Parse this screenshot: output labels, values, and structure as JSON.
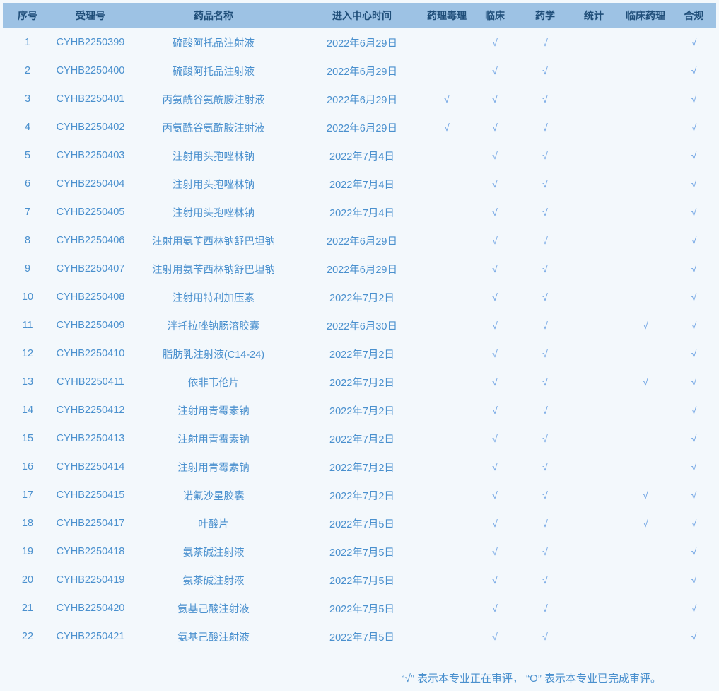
{
  "page": {
    "background": "#f3f8fc"
  },
  "colors": {
    "header_background": "#9dc2e4",
    "header_text": "#1f4e79",
    "row_text": "#4a90ce",
    "check_mark": "#6ea3e4"
  },
  "table": {
    "check_mark": "√",
    "columns": [
      {
        "key": "seq",
        "label": "序号"
      },
      {
        "key": "acceptance_no",
        "label": "受理号"
      },
      {
        "key": "drug_name",
        "label": "药品名称"
      },
      {
        "key": "entry_date",
        "label": "进入中心时间"
      },
      {
        "key": "pharmtox",
        "label": "药理毒理"
      },
      {
        "key": "clinical",
        "label": "临床"
      },
      {
        "key": "pharmacy",
        "label": "药学"
      },
      {
        "key": "statistics",
        "label": "统计"
      },
      {
        "key": "clinpharm",
        "label": "临床药理"
      },
      {
        "key": "compliance",
        "label": "合规"
      }
    ],
    "rows": [
      {
        "seq": "1",
        "acceptance_no": "CYHB2250399",
        "drug_name": "硫酸阿托品注射液",
        "entry_date": "2022年6月29日",
        "checks": [
          "",
          "√",
          "√",
          "",
          "",
          "√"
        ]
      },
      {
        "seq": "2",
        "acceptance_no": "CYHB2250400",
        "drug_name": "硫酸阿托品注射液",
        "entry_date": "2022年6月29日",
        "checks": [
          "",
          "√",
          "√",
          "",
          "",
          "√"
        ]
      },
      {
        "seq": "3",
        "acceptance_no": "CYHB2250401",
        "drug_name": "丙氨酰谷氨酰胺注射液",
        "entry_date": "2022年6月29日",
        "checks": [
          "√",
          "√",
          "√",
          "",
          "",
          "√"
        ]
      },
      {
        "seq": "4",
        "acceptance_no": "CYHB2250402",
        "drug_name": "丙氨酰谷氨酰胺注射液",
        "entry_date": "2022年6月29日",
        "checks": [
          "√",
          "√",
          "√",
          "",
          "",
          "√"
        ]
      },
      {
        "seq": "5",
        "acceptance_no": "CYHB2250403",
        "drug_name": "注射用头孢唑林钠",
        "entry_date": "2022年7月4日",
        "checks": [
          "",
          "√",
          "√",
          "",
          "",
          "√"
        ]
      },
      {
        "seq": "6",
        "acceptance_no": "CYHB2250404",
        "drug_name": "注射用头孢唑林钠",
        "entry_date": "2022年7月4日",
        "checks": [
          "",
          "√",
          "√",
          "",
          "",
          "√"
        ]
      },
      {
        "seq": "7",
        "acceptance_no": "CYHB2250405",
        "drug_name": "注射用头孢唑林钠",
        "entry_date": "2022年7月4日",
        "checks": [
          "",
          "√",
          "√",
          "",
          "",
          "√"
        ]
      },
      {
        "seq": "8",
        "acceptance_no": "CYHB2250406",
        "drug_name": "注射用氨苄西林钠舒巴坦钠",
        "entry_date": "2022年6月29日",
        "checks": [
          "",
          "√",
          "√",
          "",
          "",
          "√"
        ]
      },
      {
        "seq": "9",
        "acceptance_no": "CYHB2250407",
        "drug_name": "注射用氨苄西林钠舒巴坦钠",
        "entry_date": "2022年6月29日",
        "checks": [
          "",
          "√",
          "√",
          "",
          "",
          "√"
        ]
      },
      {
        "seq": "10",
        "acceptance_no": "CYHB2250408",
        "drug_name": "注射用特利加压素",
        "entry_date": "2022年7月2日",
        "checks": [
          "",
          "√",
          "√",
          "",
          "",
          "√"
        ]
      },
      {
        "seq": "11",
        "acceptance_no": "CYHB2250409",
        "drug_name": "泮托拉唑钠肠溶胶囊",
        "entry_date": "2022年6月30日",
        "checks": [
          "",
          "√",
          "√",
          "",
          "√",
          "√"
        ]
      },
      {
        "seq": "12",
        "acceptance_no": "CYHB2250410",
        "drug_name": "脂肪乳注射液(C14-24)",
        "entry_date": "2022年7月2日",
        "checks": [
          "",
          "√",
          "√",
          "",
          "",
          "√"
        ]
      },
      {
        "seq": "13",
        "acceptance_no": "CYHB2250411",
        "drug_name": "依非韦伦片",
        "entry_date": "2022年7月2日",
        "checks": [
          "",
          "√",
          "√",
          "",
          "√",
          "√"
        ]
      },
      {
        "seq": "14",
        "acceptance_no": "CYHB2250412",
        "drug_name": "注射用青霉素钠",
        "entry_date": "2022年7月2日",
        "checks": [
          "",
          "√",
          "√",
          "",
          "",
          "√"
        ]
      },
      {
        "seq": "15",
        "acceptance_no": "CYHB2250413",
        "drug_name": "注射用青霉素钠",
        "entry_date": "2022年7月2日",
        "checks": [
          "",
          "√",
          "√",
          "",
          "",
          "√"
        ]
      },
      {
        "seq": "16",
        "acceptance_no": "CYHB2250414",
        "drug_name": "注射用青霉素钠",
        "entry_date": "2022年7月2日",
        "checks": [
          "",
          "√",
          "√",
          "",
          "",
          "√"
        ]
      },
      {
        "seq": "17",
        "acceptance_no": "CYHB2250415",
        "drug_name": "诺氟沙星胶囊",
        "entry_date": "2022年7月2日",
        "checks": [
          "",
          "√",
          "√",
          "",
          "√",
          "√"
        ]
      },
      {
        "seq": "18",
        "acceptance_no": "CYHB2250417",
        "drug_name": "叶酸片",
        "entry_date": "2022年7月5日",
        "checks": [
          "",
          "√",
          "√",
          "",
          "√",
          "√"
        ]
      },
      {
        "seq": "19",
        "acceptance_no": "CYHB2250418",
        "drug_name": "氨茶碱注射液",
        "entry_date": "2022年7月5日",
        "checks": [
          "",
          "√",
          "√",
          "",
          "",
          "√"
        ]
      },
      {
        "seq": "20",
        "acceptance_no": "CYHB2250419",
        "drug_name": "氨茶碱注射液",
        "entry_date": "2022年7月5日",
        "checks": [
          "",
          "√",
          "√",
          "",
          "",
          "√"
        ]
      },
      {
        "seq": "21",
        "acceptance_no": "CYHB2250420",
        "drug_name": "氨基己酸注射液",
        "entry_date": "2022年7月5日",
        "checks": [
          "",
          "√",
          "√",
          "",
          "",
          "√"
        ]
      },
      {
        "seq": "22",
        "acceptance_no": "CYHB2250421",
        "drug_name": "氨基己酸注射液",
        "entry_date": "2022年7月5日",
        "checks": [
          "",
          "√",
          "√",
          "",
          "",
          "√"
        ]
      }
    ]
  },
  "footer": {
    "legend": "“√” 表示本专业正在审评， “O” 表示本专业已完成审评。"
  }
}
